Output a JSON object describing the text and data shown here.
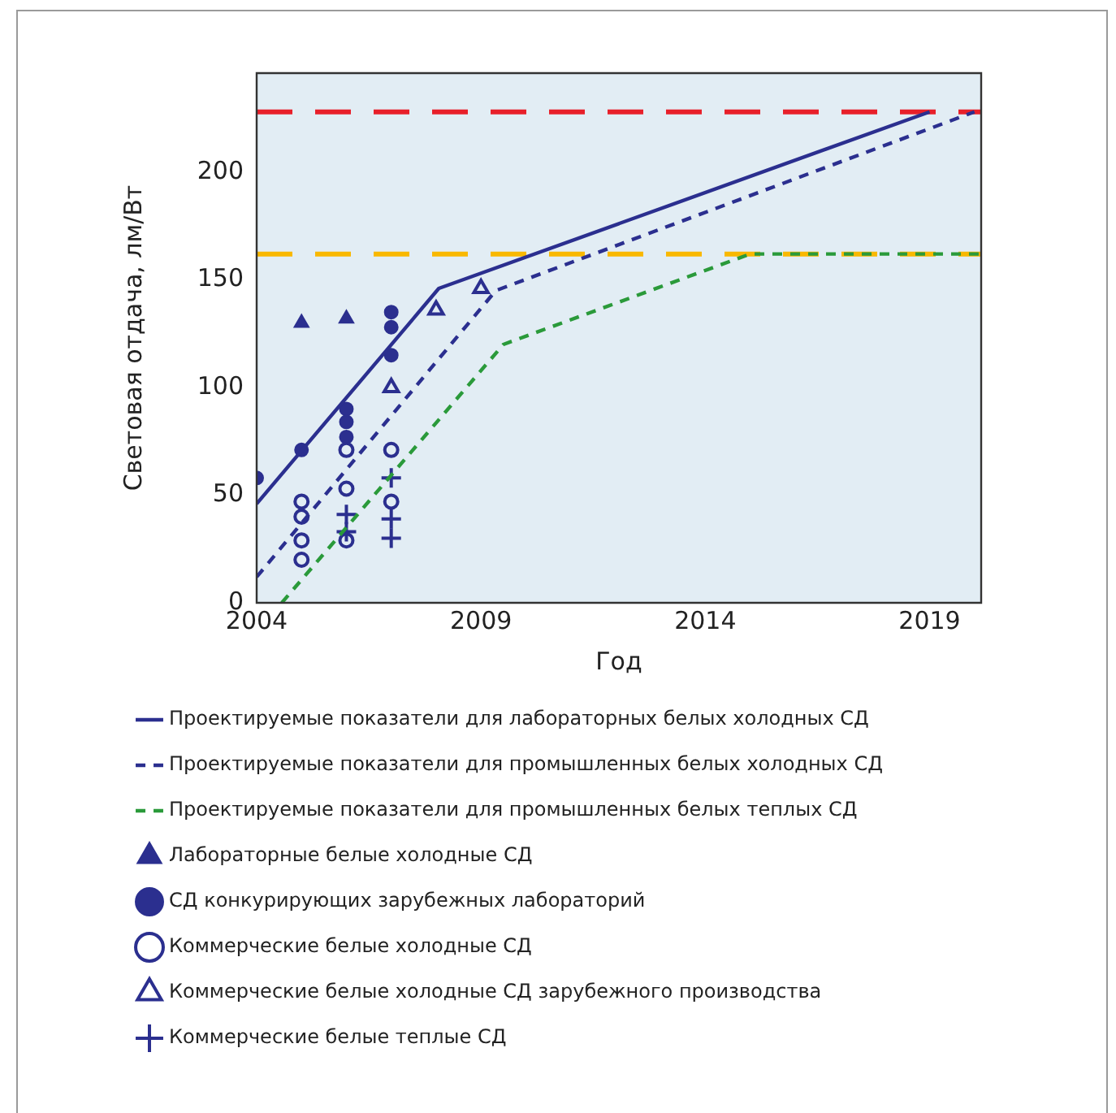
{
  "chart_data": {
    "type": "scatter",
    "xlabel": "Год",
    "ylabel": "Световая отдача, лм/Вт",
    "xlim": [
      2004,
      2020.15
    ],
    "xticks": [
      2004,
      2009,
      2014,
      2019
    ],
    "ylim": [
      0,
      246
    ],
    "yticks": [
      0,
      50,
      100,
      150,
      200
    ],
    "grid": false,
    "legend": "bottom",
    "ref_lines": [
      {
        "axis": "y",
        "value": 228,
        "color": "#e8202a",
        "line_style": "dashed"
      },
      {
        "axis": "y",
        "value": 162,
        "color": "#f9b800",
        "line_style": "dashed"
      }
    ],
    "series": [
      {
        "name": "Проектируемые показатели\nдля лабораторных белых холодных СД",
        "type": "line",
        "color": "#2b2f8f",
        "line_style": "solid",
        "marker": "none",
        "x": [
          2004,
          2008.06,
          2019
        ],
        "values": [
          46,
          146,
          228
        ]
      },
      {
        "name": "Проектируемые показатели\nдля промышленных белых холодных СД",
        "type": "line",
        "color": "#2b2f8f",
        "line_style": "dashed",
        "marker": "none",
        "x": [
          2004,
          2009.33,
          2020
        ],
        "values": [
          12,
          145,
          228
        ]
      },
      {
        "name": "Проектируемые показатели\nдля промышленных белых теплых СД",
        "type": "line",
        "color": "#2a9a3a",
        "line_style": "dashed",
        "marker": "none",
        "x": [
          2004.56,
          2009.5,
          2015,
          2020.15
        ],
        "values": [
          0,
          120,
          162,
          162
        ]
      },
      {
        "name": "Лабораторные белые холодные СД",
        "type": "scatter",
        "color": "#2b2f8f",
        "marker": "triangle",
        "x": [
          2005,
          2006
        ],
        "values": [
          130,
          132
        ]
      },
      {
        "name": "СД конкурирующих зарубежных лабораторий",
        "type": "scatter",
        "color": "#2b2f8f",
        "marker": "circle",
        "x": [
          2004,
          2005,
          2006,
          2006,
          2006,
          2007,
          2007,
          2007
        ],
        "values": [
          58,
          71,
          90,
          84,
          77,
          135,
          128,
          115
        ]
      },
      {
        "name": "Коммерческие белые холодные СД",
        "type": "scatter",
        "color": "#2b2f8f",
        "marker": "circle-open",
        "x": [
          2005,
          2005,
          2005,
          2005,
          2006,
          2006,
          2006,
          2007,
          2007
        ],
        "values": [
          47,
          40,
          29,
          20,
          71,
          53,
          29,
          71,
          47
        ]
      },
      {
        "name": "Коммерческие белые холодные СД\nзарубежного производства",
        "type": "scatter",
        "color": "#2b2f8f",
        "marker": "triangle-open",
        "x": [
          2007,
          2008,
          2009
        ],
        "values": [
          100,
          136,
          146
        ]
      },
      {
        "name": "Коммерческие белые теплые СД",
        "type": "scatter",
        "color": "#2b2f8f",
        "marker": "cross",
        "x": [
          2006,
          2006,
          2007,
          2007,
          2007
        ],
        "values": [
          41,
          33,
          58,
          39,
          30
        ]
      }
    ]
  }
}
